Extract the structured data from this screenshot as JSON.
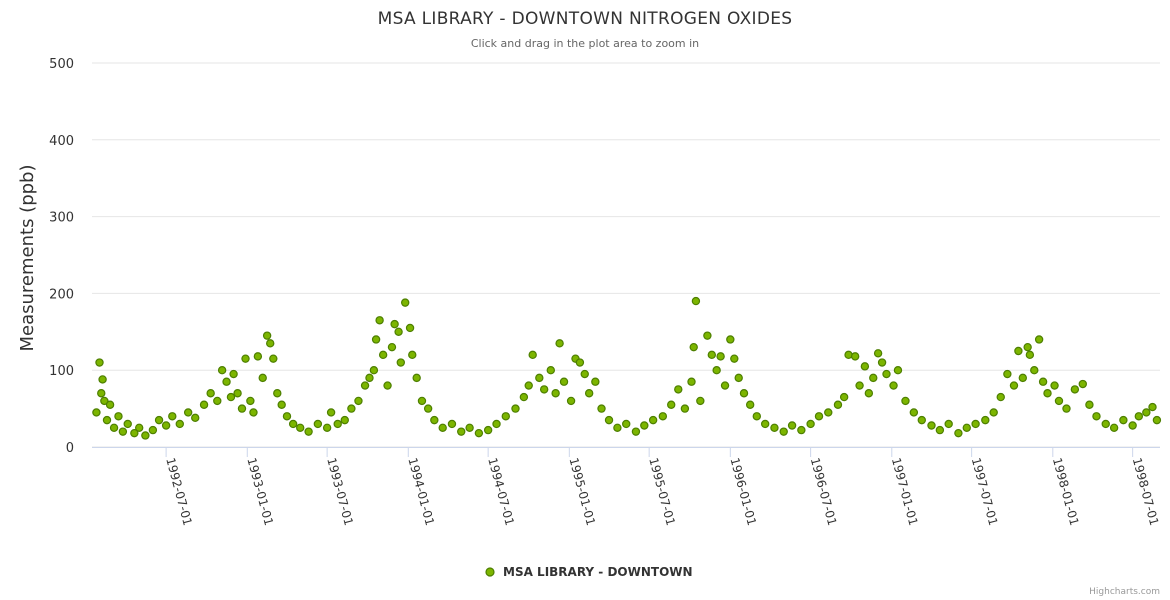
{
  "chart_data": {
    "type": "scatter",
    "title": "MSA LIBRARY - DOWNTOWN NITROGEN OXIDES",
    "subtitle": "Click and drag in the plot area to zoom in",
    "ylabel": "Measurements (ppb)",
    "xlabel": "",
    "ylim": [
      0,
      500
    ],
    "yticks": [
      0,
      100,
      200,
      300,
      400,
      500
    ],
    "xlim": [
      "1992-01-15",
      "1998-09-01"
    ],
    "xticks": [
      "1992-07-01",
      "1993-01-01",
      "1993-07-01",
      "1994-01-01",
      "1994-07-01",
      "1995-01-01",
      "1995-07-01",
      "1996-01-01",
      "1996-07-01",
      "1997-01-01",
      "1997-07-01",
      "1998-01-01",
      "1998-07-01"
    ],
    "grid": "horizontal",
    "legend": "bottom-center",
    "series": [
      {
        "name": "MSA LIBRARY - DOWNTOWN",
        "color": "#7cb500",
        "edge_color": "#4d7f00",
        "points": [
          [
            "1992-01-25",
            45
          ],
          [
            "1992-02-01",
            110
          ],
          [
            "1992-02-05",
            70
          ],
          [
            "1992-02-08",
            88
          ],
          [
            "1992-02-12",
            60
          ],
          [
            "1992-02-18",
            35
          ],
          [
            "1992-02-25",
            55
          ],
          [
            "1992-03-05",
            25
          ],
          [
            "1992-03-15",
            40
          ],
          [
            "1992-03-25",
            20
          ],
          [
            "1992-04-05",
            30
          ],
          [
            "1992-04-20",
            18
          ],
          [
            "1992-05-01",
            25
          ],
          [
            "1992-05-15",
            15
          ],
          [
            "1992-06-01",
            22
          ],
          [
            "1992-06-15",
            35
          ],
          [
            "1992-07-01",
            28
          ],
          [
            "1992-07-15",
            40
          ],
          [
            "1992-08-01",
            30
          ],
          [
            "1992-08-20",
            45
          ],
          [
            "1992-09-05",
            38
          ],
          [
            "1992-09-25",
            55
          ],
          [
            "1992-10-10",
            70
          ],
          [
            "1992-10-25",
            60
          ],
          [
            "1992-11-05",
            100
          ],
          [
            "1992-11-15",
            85
          ],
          [
            "1992-11-25",
            65
          ],
          [
            "1992-12-01",
            95
          ],
          [
            "1992-12-10",
            70
          ],
          [
            "1992-12-20",
            50
          ],
          [
            "1992-12-28",
            115
          ],
          [
            "1993-01-08",
            60
          ],
          [
            "1993-01-15",
            45
          ],
          [
            "1993-01-25",
            118
          ],
          [
            "1993-02-05",
            90
          ],
          [
            "1993-02-15",
            145
          ],
          [
            "1993-02-22",
            135
          ],
          [
            "1993-03-01",
            115
          ],
          [
            "1993-03-10",
            70
          ],
          [
            "1993-03-20",
            55
          ],
          [
            "1993-04-01",
            40
          ],
          [
            "1993-04-15",
            30
          ],
          [
            "1993-05-01",
            25
          ],
          [
            "1993-05-20",
            20
          ],
          [
            "1993-06-10",
            30
          ],
          [
            "1993-07-01",
            25
          ],
          [
            "1993-07-10",
            45
          ],
          [
            "1993-07-25",
            30
          ],
          [
            "1993-08-10",
            35
          ],
          [
            "1993-08-25",
            50
          ],
          [
            "1993-09-10",
            60
          ],
          [
            "1993-09-25",
            80
          ],
          [
            "1993-10-05",
            90
          ],
          [
            "1993-10-15",
            100
          ],
          [
            "1993-10-20",
            140
          ],
          [
            "1993-10-28",
            165
          ],
          [
            "1993-11-05",
            120
          ],
          [
            "1993-11-15",
            80
          ],
          [
            "1993-11-25",
            130
          ],
          [
            "1993-12-01",
            160
          ],
          [
            "1993-12-10",
            150
          ],
          [
            "1993-12-15",
            110
          ],
          [
            "1993-12-25",
            188
          ],
          [
            "1994-01-05",
            155
          ],
          [
            "1994-01-10",
            120
          ],
          [
            "1994-01-20",
            90
          ],
          [
            "1994-02-01",
            60
          ],
          [
            "1994-02-15",
            50
          ],
          [
            "1994-03-01",
            35
          ],
          [
            "1994-03-20",
            25
          ],
          [
            "1994-04-10",
            30
          ],
          [
            "1994-05-01",
            20
          ],
          [
            "1994-05-20",
            25
          ],
          [
            "1994-06-10",
            18
          ],
          [
            "1994-07-01",
            22
          ],
          [
            "1994-07-20",
            30
          ],
          [
            "1994-08-10",
            40
          ],
          [
            "1994-09-01",
            50
          ],
          [
            "1994-09-20",
            65
          ],
          [
            "1994-10-01",
            80
          ],
          [
            "1994-10-10",
            120
          ],
          [
            "1994-10-25",
            90
          ],
          [
            "1994-11-05",
            75
          ],
          [
            "1994-11-20",
            100
          ],
          [
            "1994-12-01",
            70
          ],
          [
            "1994-12-10",
            135
          ],
          [
            "1994-12-20",
            85
          ],
          [
            "1995-01-05",
            60
          ],
          [
            "1995-01-15",
            115
          ],
          [
            "1995-01-25",
            110
          ],
          [
            "1995-02-05",
            95
          ],
          [
            "1995-02-15",
            70
          ],
          [
            "1995-03-01",
            85
          ],
          [
            "1995-03-15",
            50
          ],
          [
            "1995-04-01",
            35
          ],
          [
            "1995-04-20",
            25
          ],
          [
            "1995-05-10",
            30
          ],
          [
            "1995-06-01",
            20
          ],
          [
            "1995-06-20",
            28
          ],
          [
            "1995-07-10",
            35
          ],
          [
            "1995-08-01",
            40
          ],
          [
            "1995-08-20",
            55
          ],
          [
            "1995-09-05",
            75
          ],
          [
            "1995-09-20",
            50
          ],
          [
            "1995-10-05",
            85
          ],
          [
            "1995-10-10",
            130
          ],
          [
            "1995-10-15",
            190
          ],
          [
            "1995-10-25",
            60
          ],
          [
            "1995-11-10",
            145
          ],
          [
            "1995-11-20",
            120
          ],
          [
            "1995-12-01",
            100
          ],
          [
            "1995-12-10",
            118
          ],
          [
            "1995-12-20",
            80
          ],
          [
            "1996-01-01",
            140
          ],
          [
            "1996-01-10",
            115
          ],
          [
            "1996-01-20",
            90
          ],
          [
            "1996-02-01",
            70
          ],
          [
            "1996-02-15",
            55
          ],
          [
            "1996-03-01",
            40
          ],
          [
            "1996-03-20",
            30
          ],
          [
            "1996-04-10",
            25
          ],
          [
            "1996-05-01",
            20
          ],
          [
            "1996-05-20",
            28
          ],
          [
            "1996-06-10",
            22
          ],
          [
            "1996-07-01",
            30
          ],
          [
            "1996-07-20",
            40
          ],
          [
            "1996-08-10",
            45
          ],
          [
            "1996-09-01",
            55
          ],
          [
            "1996-09-15",
            65
          ],
          [
            "1996-09-25",
            120
          ],
          [
            "1996-10-10",
            118
          ],
          [
            "1996-10-20",
            80
          ],
          [
            "1996-11-01",
            105
          ],
          [
            "1996-11-10",
            70
          ],
          [
            "1996-11-20",
            90
          ],
          [
            "1996-12-01",
            122
          ],
          [
            "1996-12-10",
            110
          ],
          [
            "1996-12-20",
            95
          ],
          [
            "1997-01-05",
            80
          ],
          [
            "1997-01-15",
            100
          ],
          [
            "1997-02-01",
            60
          ],
          [
            "1997-02-20",
            45
          ],
          [
            "1997-03-10",
            35
          ],
          [
            "1997-04-01",
            28
          ],
          [
            "1997-04-20",
            22
          ],
          [
            "1997-05-10",
            30
          ],
          [
            "1997-06-01",
            18
          ],
          [
            "1997-06-20",
            25
          ],
          [
            "1997-07-10",
            30
          ],
          [
            "1997-08-01",
            35
          ],
          [
            "1997-08-20",
            45
          ],
          [
            "1997-09-05",
            65
          ],
          [
            "1997-09-20",
            95
          ],
          [
            "1997-10-05",
            80
          ],
          [
            "1997-10-15",
            125
          ],
          [
            "1997-10-25",
            90
          ],
          [
            "1997-11-05",
            130
          ],
          [
            "1997-11-10",
            120
          ],
          [
            "1997-11-20",
            100
          ],
          [
            "1997-12-01",
            140
          ],
          [
            "1997-12-10",
            85
          ],
          [
            "1997-12-20",
            70
          ],
          [
            "1998-01-05",
            80
          ],
          [
            "1998-01-15",
            60
          ],
          [
            "1998-02-01",
            50
          ],
          [
            "1998-02-20",
            75
          ],
          [
            "1998-03-10",
            82
          ],
          [
            "1998-03-25",
            55
          ],
          [
            "1998-04-10",
            40
          ],
          [
            "1998-05-01",
            30
          ],
          [
            "1998-05-20",
            25
          ],
          [
            "1998-06-10",
            35
          ],
          [
            "1998-07-01",
            28
          ],
          [
            "1998-07-15",
            40
          ],
          [
            "1998-08-01",
            45
          ],
          [
            "1998-08-15",
            52
          ],
          [
            "1998-08-25",
            35
          ]
        ]
      }
    ]
  },
  "credits": "Highcharts.com"
}
